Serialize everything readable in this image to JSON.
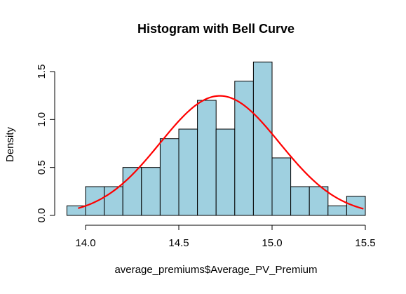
{
  "chart_data": {
    "type": "bar",
    "subtype": "histogram-with-density-curve",
    "title": "Histogram with Bell Curve",
    "xlabel": "average_premiums$Average_PV_Premium",
    "ylabel": "Density",
    "xlim": [
      13.9,
      15.5
    ],
    "ylim": [
      0,
      1.6
    ],
    "x_ticks": [
      14.0,
      14.5,
      15.0,
      15.5
    ],
    "x_tick_labels": [
      "14.0",
      "14.5",
      "15.0",
      "15.5"
    ],
    "y_ticks": [
      0.0,
      0.5,
      1.0,
      1.5
    ],
    "y_tick_labels": [
      "0.0",
      "0.5",
      "1.0",
      "1.5"
    ],
    "grid": false,
    "legend": "none",
    "bins": [
      {
        "x0": 13.9,
        "x1": 14.0,
        "density": 0.1
      },
      {
        "x0": 14.0,
        "x1": 14.1,
        "density": 0.3
      },
      {
        "x0": 14.1,
        "x1": 14.2,
        "density": 0.3
      },
      {
        "x0": 14.2,
        "x1": 14.3,
        "density": 0.5
      },
      {
        "x0": 14.3,
        "x1": 14.4,
        "density": 0.5
      },
      {
        "x0": 14.4,
        "x1": 14.5,
        "density": 0.8
      },
      {
        "x0": 14.5,
        "x1": 14.6,
        "density": 0.9
      },
      {
        "x0": 14.6,
        "x1": 14.7,
        "density": 1.2
      },
      {
        "x0": 14.7,
        "x1": 14.8,
        "density": 0.9
      },
      {
        "x0": 14.8,
        "x1": 14.9,
        "density": 1.4
      },
      {
        "x0": 14.9,
        "x1": 15.0,
        "density": 1.6
      },
      {
        "x0": 15.0,
        "x1": 15.1,
        "density": 0.6
      },
      {
        "x0": 15.1,
        "x1": 15.2,
        "density": 0.3
      },
      {
        "x0": 15.2,
        "x1": 15.3,
        "density": 0.3
      },
      {
        "x0": 15.3,
        "x1": 15.4,
        "density": 0.1
      },
      {
        "x0": 15.4,
        "x1": 15.5,
        "density": 0.2
      }
    ],
    "curve": {
      "kind": "normal",
      "mean": 14.72,
      "sd": 0.32,
      "x_range": [
        13.96,
        15.49
      ]
    },
    "colors": {
      "bar_fill": "#9fd0e0",
      "bar_stroke": "#000000",
      "curve": "#ff0000",
      "axis": "#000000",
      "background": "#ffffff"
    }
  }
}
